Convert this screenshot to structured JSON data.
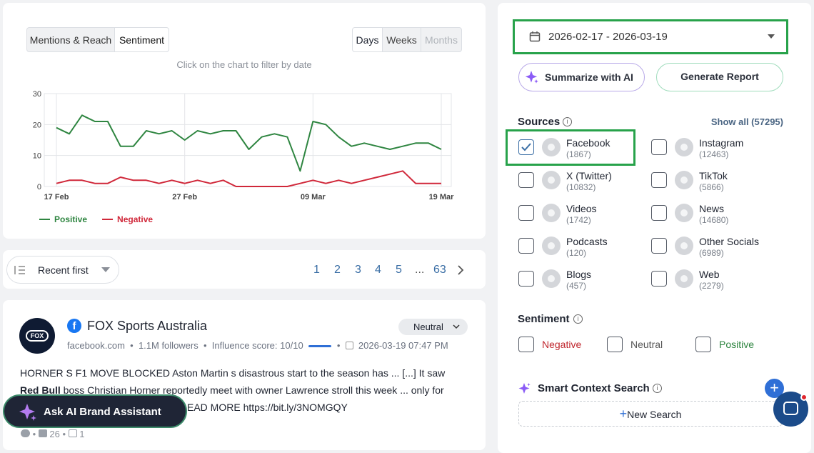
{
  "chart_data": {
    "type": "line",
    "tabs": [
      "Mentions & Reach",
      "Sentiment"
    ],
    "periods": [
      "Days",
      "Weeks",
      "Months"
    ],
    "subtitle": "Click on the chart to filter by date",
    "categories": [
      "17 Feb",
      null,
      null,
      null,
      null,
      null,
      null,
      null,
      null,
      null,
      "27 Feb",
      null,
      null,
      null,
      null,
      null,
      null,
      null,
      null,
      null,
      "09 Mar",
      null,
      null,
      null,
      null,
      null,
      null,
      null,
      null,
      null,
      "19 Mar"
    ],
    "series": [
      {
        "name": "Positive",
        "color": "#2e8540",
        "values": [
          19,
          17,
          23,
          21,
          21,
          13,
          13,
          18,
          17,
          18,
          15,
          18,
          17,
          18,
          18,
          12,
          16,
          17,
          16,
          5,
          21,
          20,
          16,
          13,
          14,
          13,
          12,
          13,
          14,
          14,
          12
        ]
      },
      {
        "name": "Negative",
        "color": "#d0283a",
        "values": [
          1,
          2,
          2,
          1,
          1,
          3,
          2,
          2,
          1,
          2,
          1,
          2,
          1,
          2,
          0,
          0,
          0,
          0,
          0,
          1,
          2,
          1,
          2,
          1,
          2,
          3,
          4,
          5,
          1,
          1,
          1
        ]
      }
    ],
    "ylim": [
      0,
      30
    ],
    "yticks": [
      0,
      10,
      20,
      30
    ],
    "grid": true
  },
  "list": {
    "sort": "Recent first",
    "pages": [
      "1",
      "2",
      "3",
      "4",
      "5",
      "...",
      "63"
    ]
  },
  "post": {
    "author": "FOX Sports Australia",
    "sentiment": "Neutral",
    "site": "facebook.com",
    "followers": "1.1M followers",
    "influence": "Influence score: 10/10",
    "date": "2026-03-19 07:47 PM",
    "body": [
      "HORNER S F1 MOVE BLOCKED Aston Martin s disastrous start to the season has ... [...] It saw",
      "Red Bull",
      " boss Christian Horner reportedly meet with owner Lawrence stroll this week ... only for",
      "EAD MORE https://bit.ly/3NOMGQY"
    ],
    "likes": "26",
    "shares": "1"
  },
  "assistant": "Ask AI Brand Assistant",
  "filters": {
    "date_range": "2026-02-17 - 2026-03-19",
    "summarize": "Summarize with AI",
    "report": "Generate Report",
    "sources_title": "Sources",
    "show_all": "Show all (57295)",
    "sources": [
      {
        "name": "Facebook",
        "count": "(1867)",
        "checked": true
      },
      {
        "name": "Instagram",
        "count": "(12463)",
        "checked": false
      },
      {
        "name": "X (Twitter)",
        "count": "(10832)",
        "checked": false
      },
      {
        "name": "TikTok",
        "count": "(5866)",
        "checked": false
      },
      {
        "name": "Videos",
        "count": "(1742)",
        "checked": false
      },
      {
        "name": "News",
        "count": "(14680)",
        "checked": false
      },
      {
        "name": "Podcasts",
        "count": "(120)",
        "checked": false
      },
      {
        "name": "Other Socials",
        "count": "(6989)",
        "checked": false
      },
      {
        "name": "Blogs",
        "count": "(457)",
        "checked": false
      },
      {
        "name": "Web",
        "count": "(2279)",
        "checked": false
      }
    ],
    "sentiment_title": "Sentiment",
    "sentiments": [
      "Negative",
      "Neutral",
      "Positive"
    ],
    "smart_title": "Smart Context Search",
    "new_search": "New Search"
  }
}
